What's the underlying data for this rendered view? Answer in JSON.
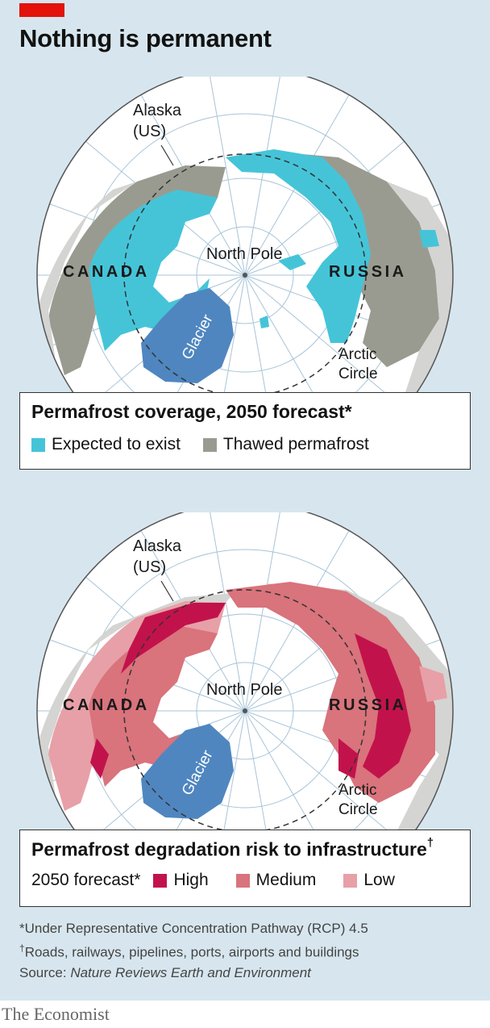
{
  "header": {
    "title": "Nothing is permanent"
  },
  "map_labels": {
    "alaska": "Alaska",
    "alaska_sub": "(US)",
    "canada": "CANADA",
    "russia": "RUSSIA",
    "north_pole": "North Pole",
    "glacier": "Glacier",
    "arctic": "Arctic",
    "circle": "Circle"
  },
  "legend_top": {
    "title": "Permafrost coverage, 2050 forecast*",
    "items": [
      {
        "label": "Expected to exist",
        "color": "#45c4d8"
      },
      {
        "label": "Thawed permafrost",
        "color": "#9a9b90"
      }
    ]
  },
  "legend_bottom": {
    "title": "Permafrost degradation risk to infrastructure",
    "title_mark": "†",
    "subtitle": "2050 forecast*",
    "items": [
      {
        "label": "High",
        "color": "#c2124c"
      },
      {
        "label": "Medium",
        "color": "#d9737c"
      },
      {
        "label": "Low",
        "color": "#e7a0a7"
      }
    ]
  },
  "notes": {
    "note1": "*Under Representative Concentration Pathway (RCP) 4.5",
    "note2_mark": "†",
    "note2": "Roads, railways, pipelines, ports, airports and buildings",
    "source_label": "Source: ",
    "source": "Nature Reviews Earth and Environment"
  },
  "colors": {
    "ocean": "#ffffff",
    "land": "#d4d4d2",
    "glacier": "#4f86c0",
    "grid": "#a8c4d8"
  },
  "brand": "The Economist"
}
